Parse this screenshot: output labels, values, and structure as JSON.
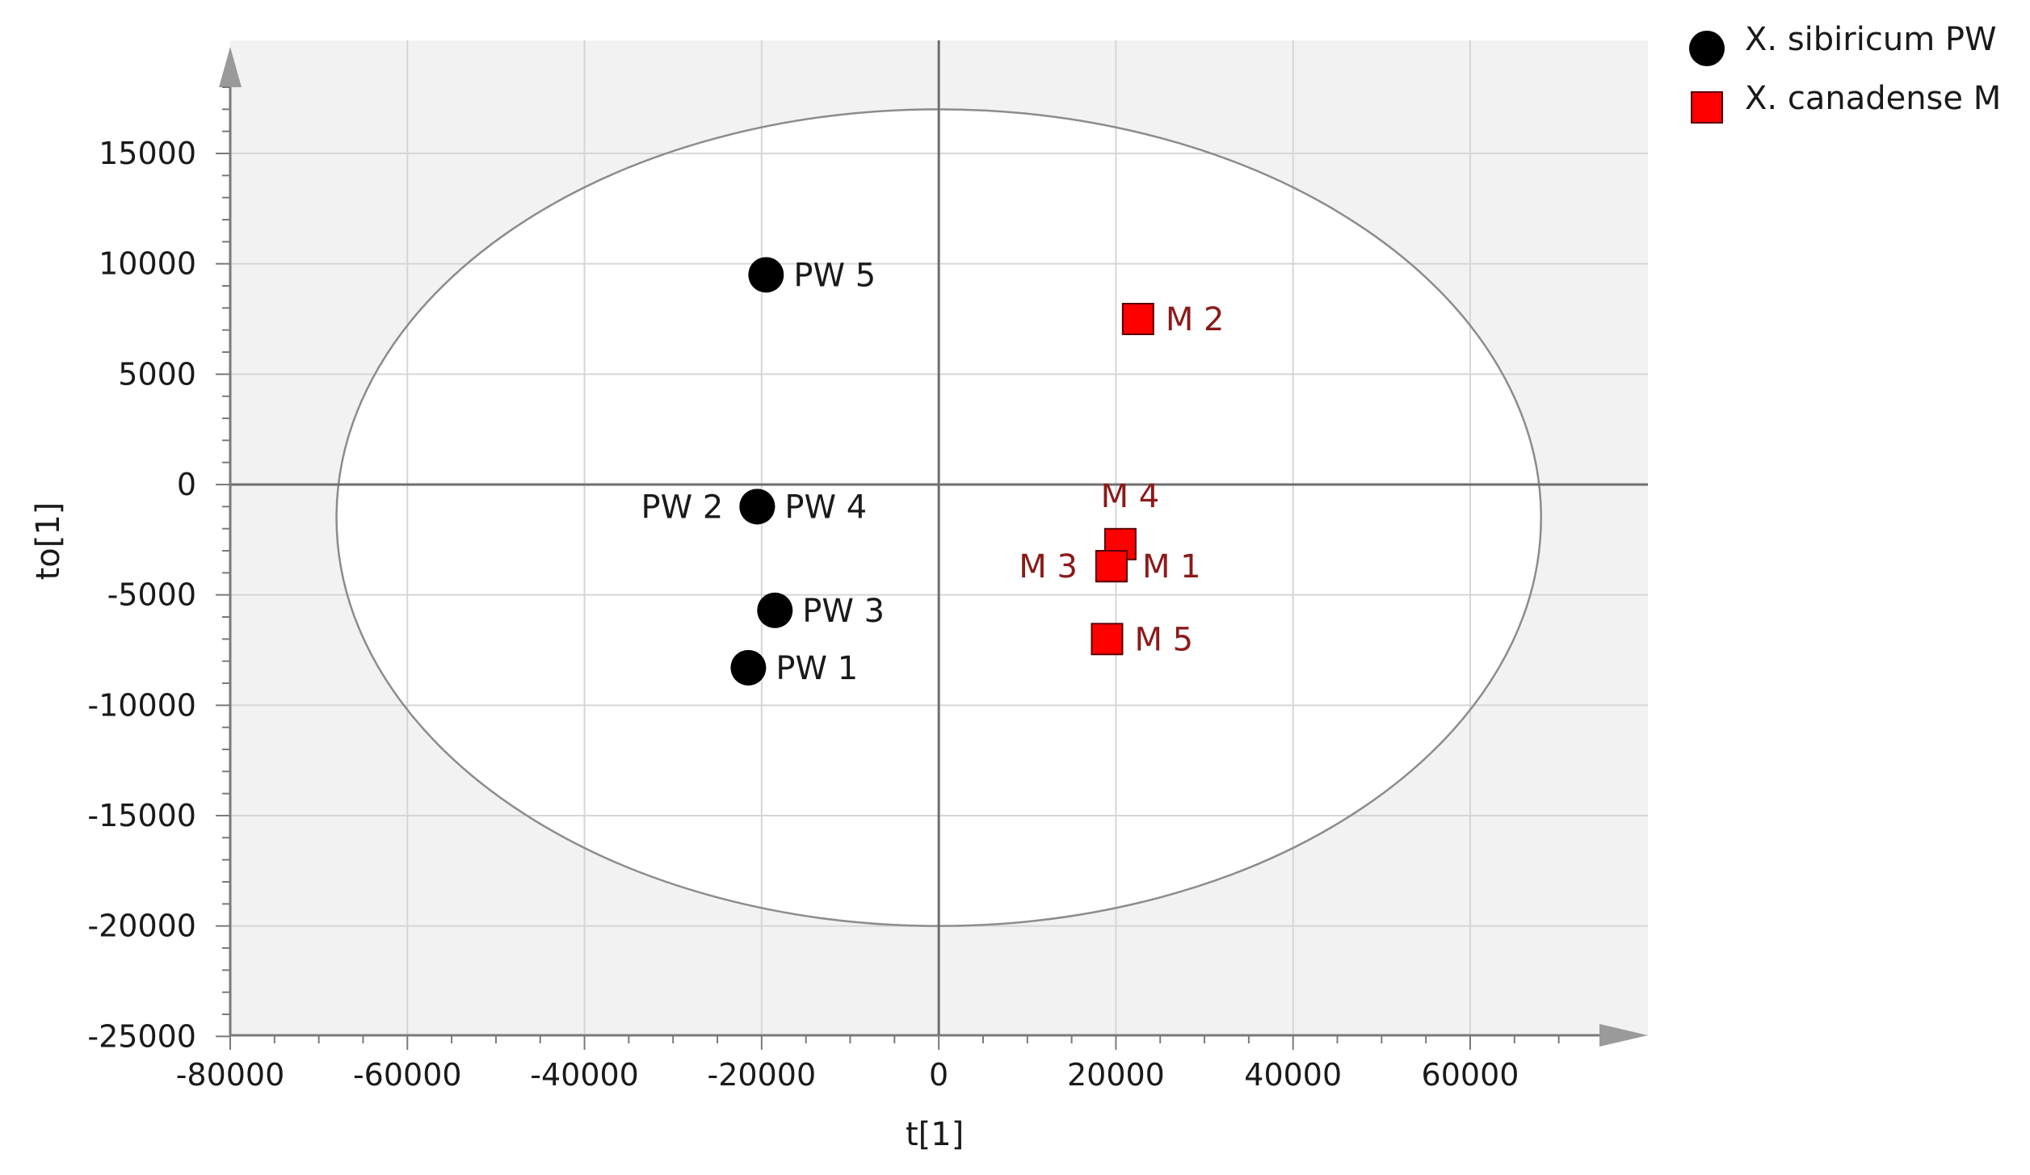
{
  "chart_data": {
    "type": "scatter",
    "xlabel": "t[1]",
    "ylabel": "to[1]",
    "xlim": [
      -80000,
      80000
    ],
    "ylim": [
      -25000,
      20000
    ],
    "x_ticks": [
      -80000,
      -60000,
      -40000,
      -20000,
      0,
      20000,
      40000,
      60000
    ],
    "y_ticks": [
      -25000,
      -20000,
      -15000,
      -10000,
      -5000,
      0,
      5000,
      10000,
      15000
    ],
    "grid": true,
    "legend_position": "top-right",
    "ellipse": {
      "center_x": 0,
      "center_y": -1500,
      "radius_x": 68000,
      "radius_y": 18500
    },
    "series": [
      {
        "name": "X. sibiricum PW",
        "marker": "circle",
        "color": "#000000",
        "label_color": "#1a1a1a",
        "points": [
          {
            "label": "PW 5",
            "x": -19500,
            "y": 9500
          },
          {
            "label": "PW 2",
            "x": -20500,
            "y": -1000
          },
          {
            "label": "PW 4",
            "x": -20500,
            "y": -1000
          },
          {
            "label": "PW 3",
            "x": -18500,
            "y": -5700
          },
          {
            "label": "PW 1",
            "x": -21500,
            "y": -8300
          }
        ]
      },
      {
        "name": "X. canadense M",
        "marker": "square",
        "color": "#ff0000",
        "label_color": "#8b1a1a",
        "points": [
          {
            "label": "M 2",
            "x": 22500,
            "y": 7500
          },
          {
            "label": "M 4",
            "x": 20500,
            "y": -2700
          },
          {
            "label": "M 3",
            "x": 19500,
            "y": -3700
          },
          {
            "label": "M 1",
            "x": 19500,
            "y": -3700
          },
          {
            "label": "M 5",
            "x": 19000,
            "y": -7000
          }
        ]
      }
    ]
  }
}
